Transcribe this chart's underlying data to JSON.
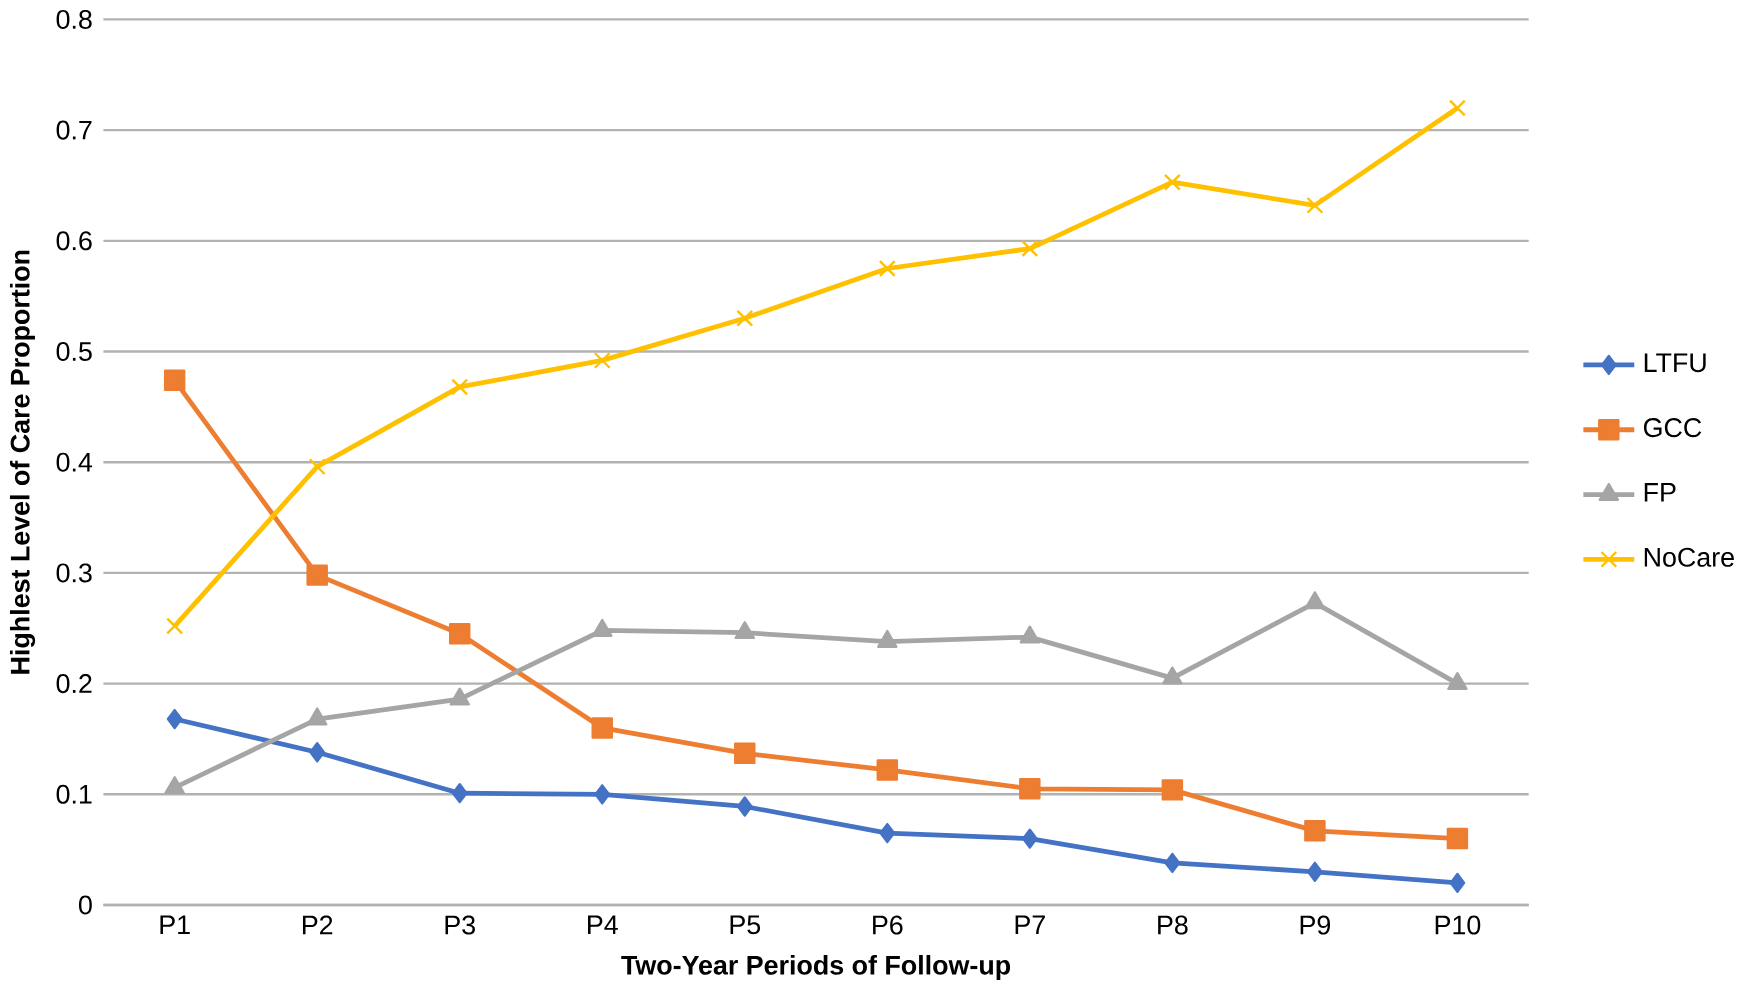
{
  "chart_data": {
    "type": "line",
    "xlabel": "Two-Year Periods of Follow-up",
    "ylabel": "Highlest Level of Care Proportion",
    "categories": [
      "P1",
      "P2",
      "P3",
      "P4",
      "P5",
      "P6",
      "P7",
      "P8",
      "P9",
      "P10"
    ],
    "series": [
      {
        "name": "LTFU",
        "color": "#4472c4",
        "marker": "diamond",
        "values": [
          0.168,
          0.138,
          0.101,
          0.1,
          0.089,
          0.065,
          0.06,
          0.038,
          0.03,
          0.02
        ]
      },
      {
        "name": "GCC",
        "color": "#ed7d31",
        "marker": "square",
        "values": [
          0.474,
          0.298,
          0.245,
          0.16,
          0.137,
          0.122,
          0.105,
          0.104,
          0.067,
          0.06
        ]
      },
      {
        "name": "FP",
        "color": "#a5a5a5",
        "marker": "triangle",
        "values": [
          0.106,
          0.168,
          0.186,
          0.248,
          0.246,
          0.238,
          0.242,
          0.205,
          0.273,
          0.2
        ]
      },
      {
        "name": "NoCare",
        "color": "#ffc000",
        "marker": "cross",
        "values": [
          0.252,
          0.396,
          0.468,
          0.492,
          0.53,
          0.575,
          0.593,
          0.653,
          0.632,
          0.72
        ]
      }
    ],
    "ylim": [
      0,
      0.8
    ],
    "yticks": [
      0,
      0.1,
      0.2,
      0.3,
      0.4,
      0.5,
      0.6,
      0.7,
      0.8
    ],
    "grid": "y",
    "legend": "right"
  }
}
